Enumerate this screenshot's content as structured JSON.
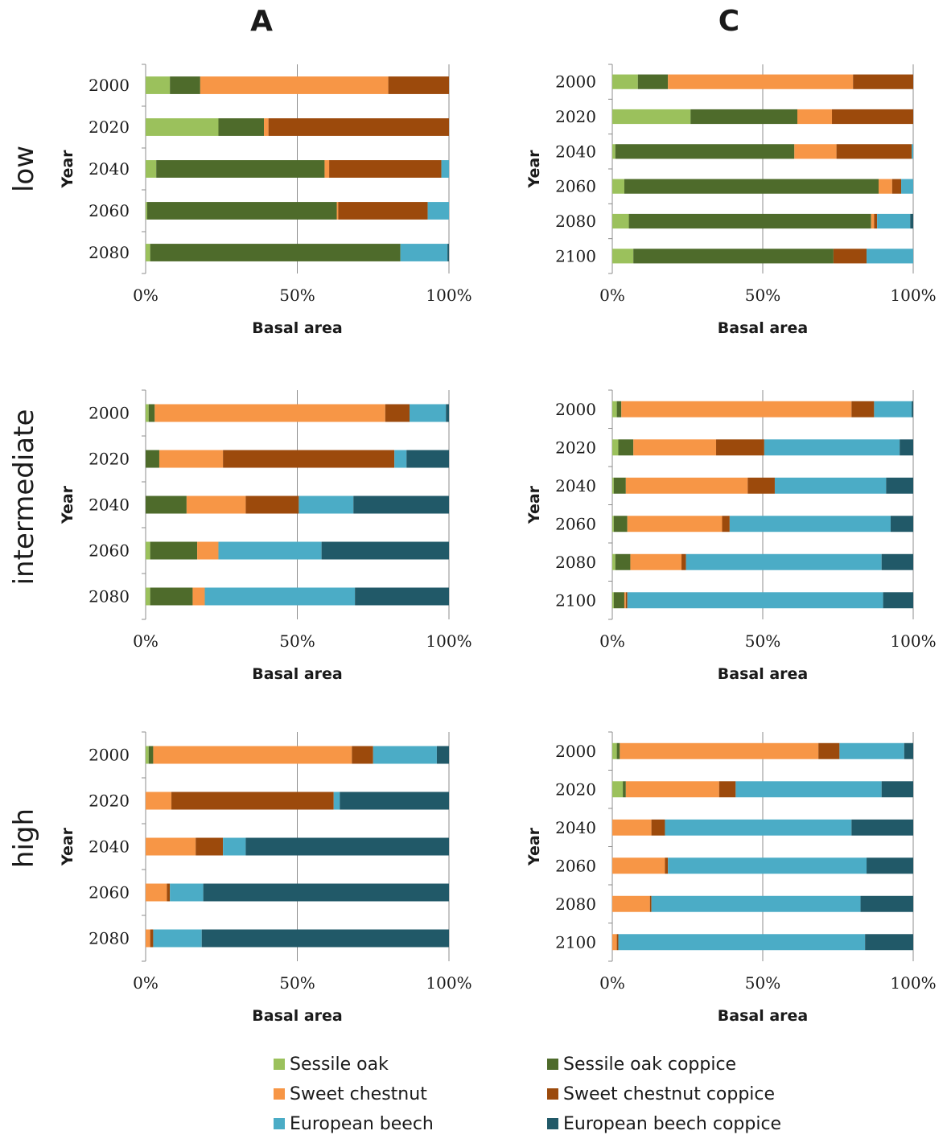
{
  "columns": [
    "A",
    "C"
  ],
  "rows": [
    "low",
    "intermediate",
    "high"
  ],
  "colors": {
    "Sessile oak": "#9bc15c",
    "Sessile oak coppice": "#4e6b2b",
    "Sweet chestnut": "#f79646",
    "Sweet chestnut coppice": "#9c4a0c",
    "European beech": "#4bacc6",
    "European beech coppice": "#215968"
  },
  "legend": [
    "Sessile oak",
    "Sessile oak coppice",
    "Sweet chestnut",
    "Sweet chestnut coppice",
    "European beech",
    "European beech coppice"
  ],
  "chart_data": [
    {
      "type": "bar",
      "panel": "A-low",
      "orientation": "horizontal",
      "stacked": "percent",
      "categories": [
        "2000",
        "2020",
        "2040",
        "2060",
        "2080"
      ],
      "xlabel": "Basal area",
      "ylabel": "Year",
      "xticks": [
        "0%",
        "50%",
        "100%"
      ],
      "xlim": [
        0,
        100
      ],
      "series": [
        {
          "name": "Sessile oak",
          "values": [
            8,
            24,
            3.5,
            0.5,
            1.5
          ]
        },
        {
          "name": "Sessile oak coppice",
          "values": [
            10,
            15,
            55.5,
            62.5,
            82.5
          ]
        },
        {
          "name": "Sweet chestnut",
          "values": [
            62,
            1.5,
            1.5,
            0.5,
            0
          ]
        },
        {
          "name": "Sweet chestnut coppice",
          "values": [
            20,
            59.5,
            37,
            29.5,
            0
          ]
        },
        {
          "name": "European beech",
          "values": [
            0,
            0,
            2.5,
            7,
            15.5
          ]
        },
        {
          "name": "European beech coppice",
          "values": [
            0,
            0,
            0,
            0,
            0.5
          ]
        }
      ]
    },
    {
      "type": "bar",
      "panel": "C-low",
      "orientation": "horizontal",
      "stacked": "percent",
      "categories": [
        "2000",
        "2020",
        "2040",
        "2060",
        "2080",
        "2100"
      ],
      "xlabel": "Basal area",
      "ylabel": "Year",
      "xticks": [
        "0%",
        "50%",
        "100%"
      ],
      "xlim": [
        0,
        100
      ],
      "series": [
        {
          "name": "Sessile oak",
          "values": [
            8.5,
            26,
            1,
            4,
            5.5,
            7
          ]
        },
        {
          "name": "Sessile oak coppice",
          "values": [
            10,
            35.5,
            59.5,
            84.5,
            80.5,
            66.5
          ]
        },
        {
          "name": "Sweet chestnut",
          "values": [
            61.5,
            11.5,
            14,
            4.5,
            1,
            0
          ]
        },
        {
          "name": "Sweet chestnut coppice",
          "values": [
            20,
            27,
            25,
            3,
            1,
            11
          ]
        },
        {
          "name": "European beech",
          "values": [
            0,
            0,
            0.5,
            4,
            11,
            15.5
          ]
        },
        {
          "name": "European beech coppice",
          "values": [
            0,
            0,
            0,
            0,
            1,
            0
          ]
        }
      ]
    },
    {
      "type": "bar",
      "panel": "A-intermediate",
      "orientation": "horizontal",
      "stacked": "percent",
      "categories": [
        "2000",
        "2020",
        "2040",
        "2060",
        "2080"
      ],
      "xlabel": "Basal area",
      "ylabel": "Year",
      "xticks": [
        "0%",
        "50%",
        "100%"
      ],
      "xlim": [
        0,
        100
      ],
      "series": [
        {
          "name": "Sessile oak",
          "values": [
            1,
            0,
            0,
            1.5,
            1.5
          ]
        },
        {
          "name": "Sessile oak coppice",
          "values": [
            2,
            4.5,
            13.5,
            15.5,
            14
          ]
        },
        {
          "name": "Sweet chestnut",
          "values": [
            76,
            21,
            19.5,
            7,
            4
          ]
        },
        {
          "name": "Sweet chestnut coppice",
          "values": [
            8,
            56.5,
            17.5,
            0,
            0
          ]
        },
        {
          "name": "European beech",
          "values": [
            12,
            4,
            18,
            34,
            49.5
          ]
        },
        {
          "name": "European beech coppice",
          "values": [
            1,
            14,
            31.5,
            42,
            31
          ]
        }
      ]
    },
    {
      "type": "bar",
      "panel": "C-intermediate",
      "orientation": "horizontal",
      "stacked": "percent",
      "categories": [
        "2000",
        "2020",
        "2040",
        "2060",
        "2080",
        "2100"
      ],
      "xlabel": "Basal area",
      "ylabel": "Year",
      "xticks": [
        "0%",
        "50%",
        "100%"
      ],
      "xlim": [
        0,
        100
      ],
      "series": [
        {
          "name": "Sessile oak",
          "values": [
            1.5,
            2,
            0.5,
            0.5,
            1,
            0.5
          ]
        },
        {
          "name": "Sessile oak coppice",
          "values": [
            1.5,
            5,
            4,
            4.5,
            5,
            3.5
          ]
        },
        {
          "name": "Sweet chestnut",
          "values": [
            76.5,
            27.5,
            40.5,
            31.5,
            17,
            0.5
          ]
        },
        {
          "name": "Sweet chestnut coppice",
          "values": [
            7.5,
            16,
            9,
            2.5,
            1.5,
            0.5
          ]
        },
        {
          "name": "European beech",
          "values": [
            12.5,
            45,
            37,
            53.5,
            65,
            85
          ]
        },
        {
          "name": "European beech coppice",
          "values": [
            0.5,
            4.5,
            9,
            7.5,
            10.5,
            10
          ]
        }
      ]
    },
    {
      "type": "bar",
      "panel": "A-high",
      "orientation": "horizontal",
      "stacked": "percent",
      "categories": [
        "2000",
        "2020",
        "2040",
        "2060",
        "2080"
      ],
      "xlabel": "Basal area",
      "ylabel": "Year",
      "xticks": [
        "0%",
        "50%",
        "100%"
      ],
      "xlim": [
        0,
        100
      ],
      "series": [
        {
          "name": "Sessile oak",
          "values": [
            1,
            0,
            0,
            0,
            0
          ]
        },
        {
          "name": "Sessile oak coppice",
          "values": [
            1.5,
            0,
            0,
            0,
            0
          ]
        },
        {
          "name": "Sweet chestnut",
          "values": [
            65.5,
            8.5,
            16.5,
            7,
            1.5
          ]
        },
        {
          "name": "Sweet chestnut coppice",
          "values": [
            7,
            53.5,
            9,
            1,
            1
          ]
        },
        {
          "name": "European beech",
          "values": [
            21,
            2,
            7.5,
            11,
            16
          ]
        },
        {
          "name": "European beech coppice",
          "values": [
            4,
            36,
            67,
            81,
            81.5
          ]
        }
      ]
    },
    {
      "type": "bar",
      "panel": "C-high",
      "orientation": "horizontal",
      "stacked": "percent",
      "categories": [
        "2000",
        "2020",
        "2040",
        "2060",
        "2080",
        "2100"
      ],
      "xlabel": "Basal area",
      "ylabel": "Year",
      "xticks": [
        "0%",
        "50%",
        "100%"
      ],
      "xlim": [
        0,
        100
      ],
      "series": [
        {
          "name": "Sessile oak",
          "values": [
            1.5,
            3.5,
            0,
            0,
            0,
            0
          ]
        },
        {
          "name": "Sessile oak coppice",
          "values": [
            1,
            1,
            0,
            0,
            0,
            0
          ]
        },
        {
          "name": "Sweet chestnut",
          "values": [
            66,
            31,
            13,
            17.5,
            12.5,
            1.5
          ]
        },
        {
          "name": "Sweet chestnut coppice",
          "values": [
            7,
            5.5,
            4.5,
            1,
            0.5,
            0.5
          ]
        },
        {
          "name": "European beech",
          "values": [
            21.5,
            48.5,
            62,
            66,
            69.5,
            82
          ]
        },
        {
          "name": "European beech coppice",
          "values": [
            3,
            10.5,
            20.5,
            15.5,
            17.5,
            16
          ]
        }
      ]
    }
  ]
}
